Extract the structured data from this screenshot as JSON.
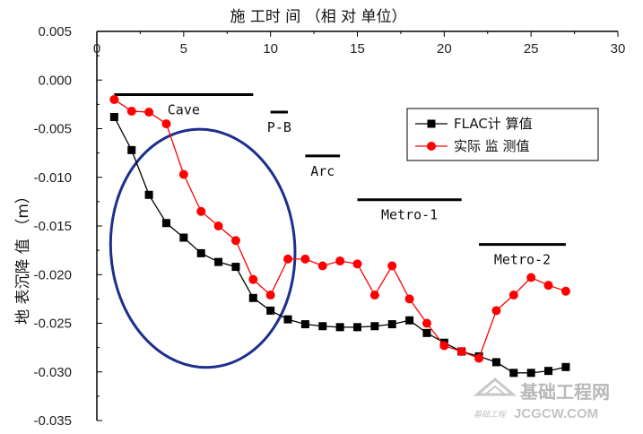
{
  "chart_data": {
    "type": "line",
    "xlabel": "施 工时 间 （相 对 单位）",
    "ylabel": "地 表沉降 值 （m）",
    "xlim": [
      0,
      30
    ],
    "ylim": [
      -0.035,
      0.005
    ],
    "x_ticks": [
      "0",
      "5",
      "10",
      "15",
      "20",
      "25",
      "30"
    ],
    "y_ticks": [
      "0.005",
      "0.000",
      "-0.005",
      "-0.010",
      "-0.015",
      "-0.020",
      "-0.025",
      "-0.030",
      "-0.035"
    ],
    "grid": false,
    "legend_position": "top-right",
    "series": [
      {
        "name": "FLAC计  算值",
        "color": "#000000",
        "marker": "square",
        "x": [
          1,
          2,
          3,
          4,
          5,
          6,
          7,
          8,
          9,
          10,
          11,
          12,
          13,
          14,
          15,
          16,
          17,
          18,
          19,
          20,
          21,
          22,
          23,
          24,
          25,
          26,
          27
        ],
        "y": [
          -0.0038,
          -0.0072,
          -0.0118,
          -0.0147,
          -0.0162,
          -0.0178,
          -0.0187,
          -0.0192,
          -0.0224,
          -0.0237,
          -0.0246,
          -0.0251,
          -0.0253,
          -0.0254,
          -0.0254,
          -0.0253,
          -0.0251,
          -0.0247,
          -0.026,
          -0.027,
          -0.0279,
          -0.0284,
          -0.029,
          -0.0301,
          -0.0301,
          -0.0299,
          -0.0295
        ]
      },
      {
        "name": "实际 监 测值",
        "color": "#ff0000",
        "marker": "circle",
        "x": [
          1,
          2,
          3,
          4,
          5,
          6,
          7,
          8,
          9,
          10,
          11,
          12,
          13,
          14,
          15,
          16,
          17,
          18,
          19,
          20,
          21,
          22,
          23,
          24,
          25,
          26,
          27
        ],
        "y": [
          -0.002,
          -0.0032,
          -0.0033,
          -0.0045,
          -0.0097,
          -0.0135,
          -0.015,
          -0.0165,
          -0.0205,
          -0.0221,
          -0.0184,
          -0.0184,
          -0.0191,
          -0.0186,
          -0.0189,
          -0.0221,
          -0.0191,
          -0.0225,
          -0.025,
          -0.0273,
          -0.0279,
          -0.0286,
          -0.0237,
          -0.0221,
          -0.0203,
          -0.0211,
          -0.0217
        ]
      }
    ],
    "phases": [
      {
        "label": "Cave",
        "x0": 1,
        "x1": 9,
        "y": -0.0015
      },
      {
        "label": "P-B",
        "x0": 10,
        "x1": 11,
        "y": -0.0033
      },
      {
        "label": "Arc",
        "x0": 12,
        "x1": 14,
        "y": -0.0078
      },
      {
        "label": "Metro-1",
        "x0": 15,
        "x1": 21,
        "y": -0.0123
      },
      {
        "label": "Metro-2",
        "x0": 22,
        "x1": 27,
        "y": -0.0169
      }
    ],
    "annotation": {
      "shape": "ellipse",
      "color": "#1c2f8c"
    }
  },
  "watermark": {
    "main": "基础工程网",
    "sub": "JCGCW.COM",
    "small": "基础工程"
  }
}
